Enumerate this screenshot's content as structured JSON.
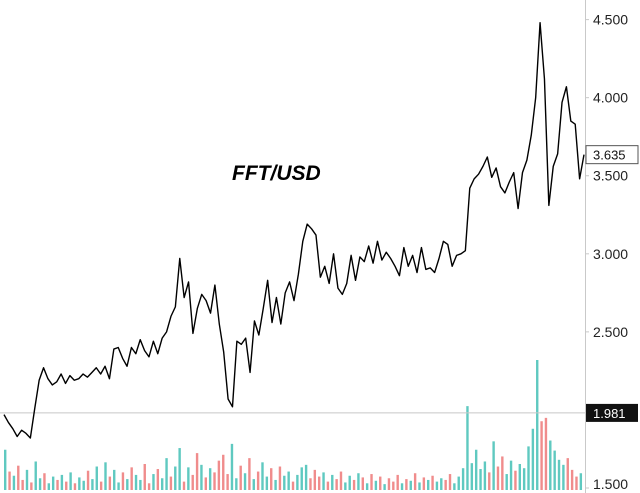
{
  "chart_data": {
    "type": "line",
    "title": "FFT/USD",
    "y_axis_side": "right",
    "ylim": [
      1.5,
      4.6
    ],
    "yticks": [
      {
        "value": 1.5,
        "label": "1.500"
      },
      {
        "value": 2.5,
        "label": "2.500"
      },
      {
        "value": 3.0,
        "label": "3.000"
      },
      {
        "value": 3.5,
        "label": "3.500"
      },
      {
        "value": 4.0,
        "label": "4.000"
      },
      {
        "value": 4.5,
        "label": "4.500"
      }
    ],
    "current_price": {
      "value": 3.635,
      "label": "3.635"
    },
    "reference_price": {
      "value": 1.981,
      "label": "1.981"
    },
    "series": [
      {
        "color": "#000000",
        "values": [
          1.97,
          1.92,
          1.88,
          1.83,
          1.87,
          1.85,
          1.82,
          2.01,
          2.19,
          2.27,
          2.2,
          2.16,
          2.18,
          2.23,
          2.17,
          2.22,
          2.19,
          2.2,
          2.23,
          2.21,
          2.24,
          2.27,
          2.23,
          2.28,
          2.2,
          2.39,
          2.4,
          2.33,
          2.28,
          2.4,
          2.36,
          2.45,
          2.38,
          2.34,
          2.44,
          2.36,
          2.46,
          2.5,
          2.6,
          2.66,
          2.97,
          2.72,
          2.82,
          2.49,
          2.65,
          2.74,
          2.7,
          2.62,
          2.8,
          2.55,
          2.37,
          2.07,
          2.02,
          2.44,
          2.42,
          2.46,
          2.24,
          2.57,
          2.48,
          2.65,
          2.83,
          2.56,
          2.72,
          2.55,
          2.75,
          2.82,
          2.7,
          2.87,
          3.08,
          3.19,
          3.16,
          3.12,
          2.85,
          2.92,
          2.81,
          3.0,
          2.78,
          2.74,
          2.81,
          2.99,
          2.83,
          2.98,
          2.95,
          3.05,
          2.94,
          3.08,
          2.96,
          3.01,
          2.97,
          2.92,
          2.86,
          3.04,
          2.92,
          2.99,
          2.88,
          3.04,
          2.9,
          2.91,
          2.88,
          2.97,
          3.08,
          3.06,
          2.92,
          2.99,
          3.0,
          3.02,
          3.42,
          3.48,
          3.51,
          3.56,
          3.62,
          3.49,
          3.55,
          3.43,
          3.39,
          3.46,
          3.52,
          3.29,
          3.52,
          3.6,
          3.76,
          4.0,
          4.48,
          4.12,
          3.31,
          3.56,
          3.64,
          3.97,
          4.07,
          3.85,
          3.83,
          3.48,
          3.635
        ]
      }
    ],
    "volume_bars": {
      "up_color": "#5fc9c0",
      "down_color": "#f08c8c",
      "values": [
        0.48,
        0.22,
        0.17,
        0.29,
        0.12,
        0.24,
        0.09,
        0.34,
        0.14,
        0.2,
        0.08,
        0.16,
        0.12,
        0.18,
        0.1,
        0.21,
        0.08,
        0.15,
        0.11,
        0.23,
        0.13,
        0.28,
        0.1,
        0.33,
        0.16,
        0.24,
        0.09,
        0.21,
        0.13,
        0.27,
        0.18,
        0.12,
        0.31,
        0.08,
        0.19,
        0.25,
        0.14,
        0.38,
        0.16,
        0.28,
        0.5,
        0.1,
        0.27,
        0.18,
        0.44,
        0.3,
        0.15,
        0.26,
        0.21,
        0.35,
        0.42,
        0.19,
        0.55,
        0.14,
        0.29,
        0.2,
        0.38,
        0.13,
        0.22,
        0.33,
        0.16,
        0.26,
        0.12,
        0.28,
        0.17,
        0.22,
        0.1,
        0.18,
        0.27,
        0.3,
        0.14,
        0.24,
        0.16,
        0.21,
        0.1,
        0.18,
        0.13,
        0.22,
        0.09,
        0.17,
        0.12,
        0.2,
        0.15,
        0.08,
        0.19,
        0.11,
        0.16,
        0.07,
        0.14,
        0.1,
        0.18,
        0.08,
        0.13,
        0.11,
        0.2,
        0.09,
        0.15,
        0.12,
        0.17,
        0.1,
        0.14,
        0.12,
        0.19,
        0.08,
        0.16,
        0.26,
        1.0,
        0.32,
        0.48,
        0.25,
        0.34,
        0.21,
        0.58,
        0.28,
        0.4,
        0.19,
        0.35,
        0.23,
        0.31,
        0.26,
        0.52,
        0.73,
        1.55,
        0.82,
        0.86,
        0.59,
        0.47,
        0.36,
        0.3,
        0.38,
        0.24,
        0.16,
        0.2
      ],
      "directions": [
        1,
        0,
        1,
        0,
        0,
        1,
        0,
        1,
        1,
        0,
        1,
        1,
        0,
        1,
        0,
        1,
        0,
        1,
        1,
        0,
        1,
        1,
        0,
        1,
        0,
        1,
        1,
        0,
        1,
        0,
        1,
        1,
        0,
        0,
        1,
        0,
        1,
        1,
        0,
        1,
        1,
        0,
        1,
        0,
        0,
        1,
        0,
        1,
        0,
        0,
        0,
        0,
        1,
        1,
        0,
        1,
        0,
        1,
        0,
        1,
        1,
        0,
        1,
        0,
        1,
        1,
        0,
        1,
        1,
        1,
        0,
        0,
        0,
        1,
        0,
        1,
        0,
        0,
        1,
        1,
        0,
        1,
        0,
        1,
        0,
        1,
        0,
        1,
        0,
        0,
        0,
        1,
        0,
        1,
        0,
        1,
        0,
        1,
        0,
        1,
        1,
        0,
        0,
        1,
        1,
        1,
        1,
        1,
        1,
        1,
        1,
        0,
        1,
        0,
        0,
        1,
        1,
        0,
        1,
        1,
        1,
        1,
        1,
        0,
        0,
        1,
        1,
        1,
        1,
        0,
        0,
        0,
        1
      ]
    }
  }
}
